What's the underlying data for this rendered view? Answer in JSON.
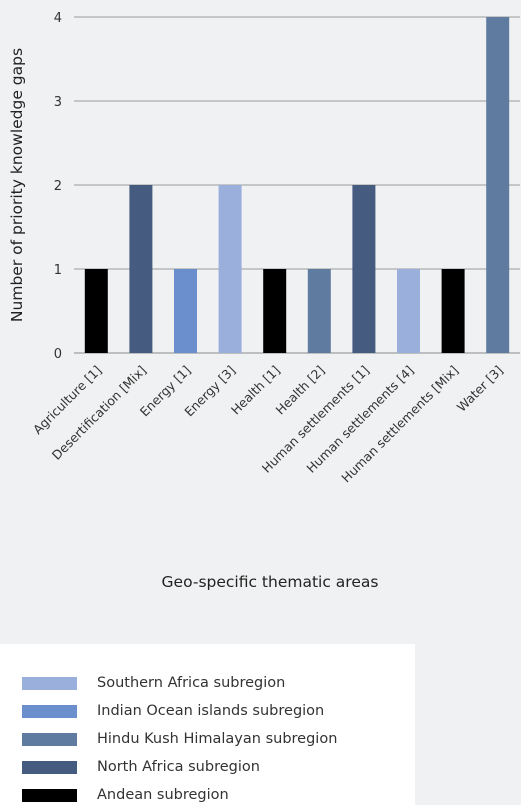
{
  "chart_data": {
    "type": "bar",
    "title": "",
    "xlabel": "Geo-specific thematic areas",
    "ylabel": "Number of priority knowledge gaps",
    "ylim": [
      0,
      4
    ],
    "yticks": [
      0,
      1,
      2,
      3,
      4
    ],
    "grid": "horizontal",
    "legend_position": "bottom-left",
    "categories": [
      "Agriculture [1]",
      "Desertification [Mix]",
      "Energy [1]",
      "Energy [3]",
      "Health [1]",
      "Health [2]",
      "Human settlements [1]",
      "Human settlements [4]",
      "Human settlements [Mix]",
      "Water [3]"
    ],
    "values": [
      1,
      2,
      1,
      2,
      1,
      1,
      2,
      1,
      1,
      4
    ],
    "bar_series": [
      "Andean subregion",
      "North Africa subregion",
      "Indian Ocean islands subregion",
      "Southern Africa subregion",
      "Andean subregion",
      "Hindu Kush Himalayan subregion",
      "North Africa subregion",
      "Southern Africa subregion",
      "Andean subregion",
      "Hindu Kush Himalayan subregion"
    ],
    "legend": [
      {
        "name": "Southern Africa subregion",
        "color": "#9aafdc"
      },
      {
        "name": "Indian Ocean islands subregion",
        "color": "#6a8fcc"
      },
      {
        "name": "Hindu Kush Himalayan subregion",
        "color": "#5f7ba0"
      },
      {
        "name": "North Africa subregion",
        "color": "#465b80"
      },
      {
        "name": "Andean subregion",
        "color": "#000000"
      }
    ]
  }
}
